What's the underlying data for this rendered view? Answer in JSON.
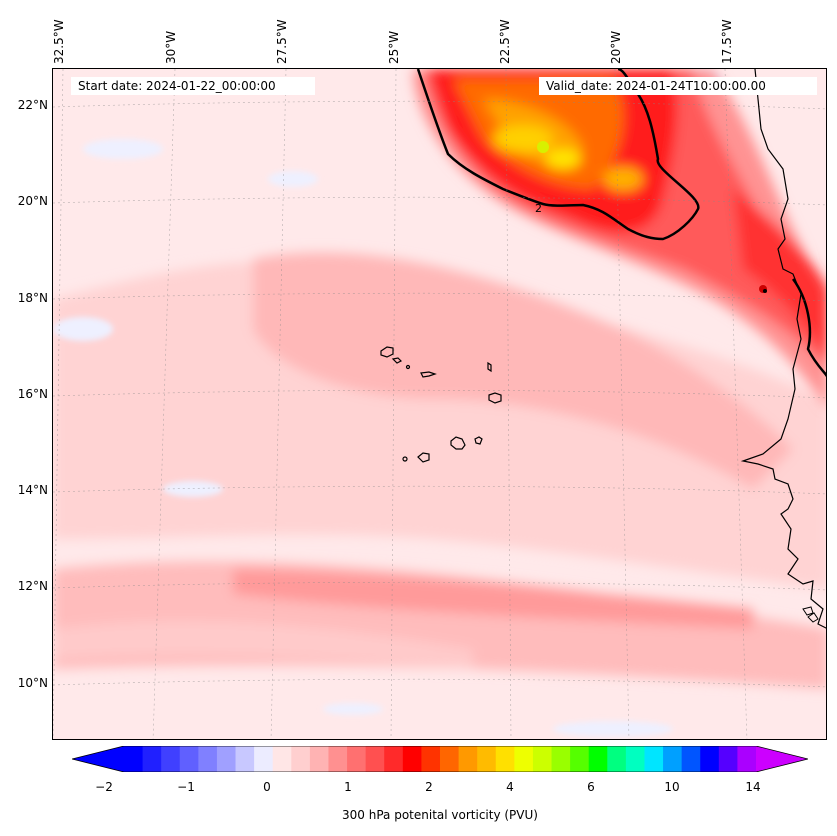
{
  "map": {
    "start_date": "Start date: 2024-01-22_00:00:00",
    "valid_date": "Valid_date: 2024-01-24T10:00:00.00",
    "contour_label": "2",
    "lon_labels": [
      "32.5°W",
      "30°W",
      "27.5°W",
      "25°W",
      "22.5°W",
      "20°W",
      "17.5°W"
    ],
    "lat_labels": [
      "22°N",
      "20°N",
      "18°N",
      "16°N",
      "14°N",
      "12°N",
      "10°N"
    ],
    "variable": "300 hPa potential vorticity",
    "units": "PVU"
  },
  "colorbar": {
    "label": "300 hPa potenital vorticity (PVU)",
    "tick_labels": [
      "−2",
      "−1",
      "0",
      "1",
      "2",
      "4",
      "6",
      "10",
      "14"
    ],
    "extend": "both",
    "colors": [
      "#0000ff",
      "#2020ff",
      "#4040ff",
      "#6060ff",
      "#8080ff",
      "#a0a0ff",
      "#c8c8ff",
      "#ececff",
      "#ffe6e6",
      "#ffcfcf",
      "#ffb3b3",
      "#ff9090",
      "#ff7070",
      "#ff5050",
      "#ff2a2a",
      "#ff0000",
      "#ff3300",
      "#ff6600",
      "#ff9900",
      "#ffbb00",
      "#ffe000",
      "#eeff00",
      "#ccff00",
      "#99ff00",
      "#55ff00",
      "#00ff00",
      "#00ff80",
      "#00ffc0",
      "#00e5ff",
      "#00a0ff",
      "#0055ff",
      "#0000ff",
      "#5500ff",
      "#aa00ff"
    ],
    "under_color": "#0000ff",
    "over_color": "#cc00ff"
  }
}
